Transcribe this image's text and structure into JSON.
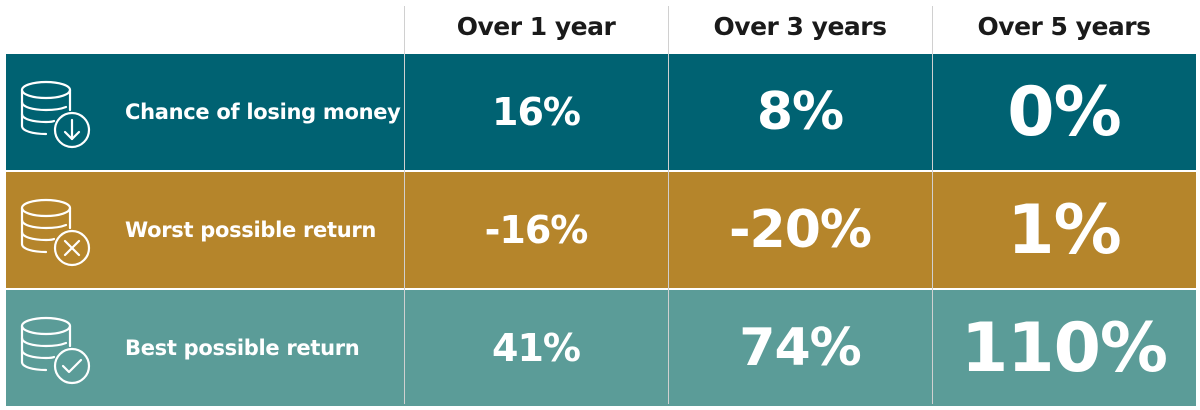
{
  "chart_data": {
    "type": "table",
    "columns": [
      "Over 1 year",
      "Over 3 years",
      "Over 5 years"
    ],
    "rows": [
      {
        "label": "Chance of losing money",
        "icon": "coin-stack-arrow-down-icon",
        "color": "#006272",
        "values": [
          "16%",
          "8%",
          "0%"
        ]
      },
      {
        "label": "Worst possible return",
        "icon": "coin-stack-x-icon",
        "color": "#b5852b",
        "values": [
          "-16%",
          "-20%",
          "1%"
        ]
      },
      {
        "label": "Best possible return",
        "icon": "coin-stack-check-icon",
        "color": "#5b9c98",
        "values": [
          "41%",
          "74%",
          "110%"
        ]
      }
    ]
  }
}
